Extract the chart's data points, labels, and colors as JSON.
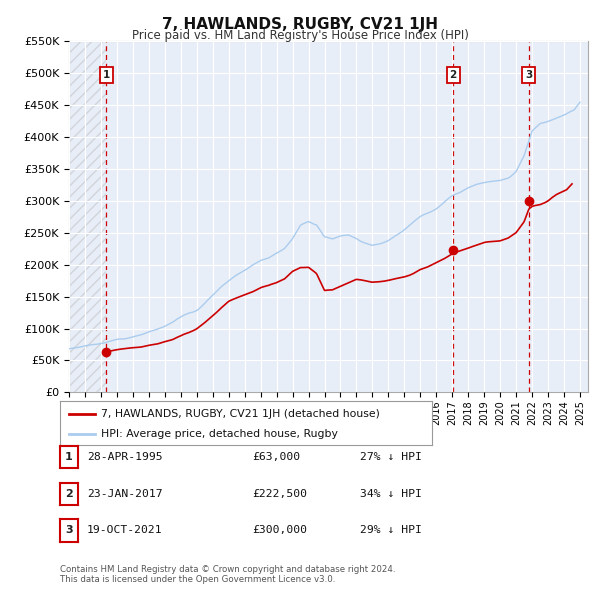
{
  "title": "7, HAWLANDS, RUGBY, CV21 1JH",
  "subtitle": "Price paid vs. HM Land Registry's House Price Index (HPI)",
  "xlim_start": 1993.0,
  "xlim_end": 2025.5,
  "ylim_min": 0,
  "ylim_max": 550000,
  "yticks": [
    0,
    50000,
    100000,
    150000,
    200000,
    250000,
    300000,
    350000,
    400000,
    450000,
    500000,
    550000
  ],
  "ytick_labels": [
    "£0",
    "£50K",
    "£100K",
    "£150K",
    "£200K",
    "£250K",
    "£300K",
    "£350K",
    "£400K",
    "£450K",
    "£500K",
    "£550K"
  ],
  "xticks": [
    1993,
    1994,
    1995,
    1996,
    1997,
    1998,
    1999,
    2000,
    2001,
    2002,
    2003,
    2004,
    2005,
    2006,
    2007,
    2008,
    2009,
    2010,
    2011,
    2012,
    2013,
    2014,
    2015,
    2016,
    2017,
    2018,
    2019,
    2020,
    2021,
    2022,
    2023,
    2024,
    2025
  ],
  "sale_color": "#cc0000",
  "hpi_color": "#aaccee",
  "vline_color": "#cc0000",
  "background_color": "#e8eef8",
  "grid_color": "#ffffff",
  "legend_label_sale": "7, HAWLANDS, RUGBY, CV21 1JH (detached house)",
  "legend_label_hpi": "HPI: Average price, detached house, Rugby",
  "sale_events": [
    {
      "label": "1",
      "date_decimal": 1995.32,
      "price": 63000,
      "date_str": "28-APR-1995",
      "price_str": "£63,000",
      "pct_str": "27% ↓ HPI"
    },
    {
      "label": "2",
      "date_decimal": 2017.06,
      "price": 222500,
      "date_str": "23-JAN-2017",
      "price_str": "£222,500",
      "pct_str": "34% ↓ HPI"
    },
    {
      "label": "3",
      "date_decimal": 2021.8,
      "price": 300000,
      "date_str": "19-OCT-2021",
      "price_str": "£300,000",
      "pct_str": "29% ↓ HPI"
    }
  ],
  "hpi_anchors": [
    [
      1993.0,
      68000
    ],
    [
      1993.5,
      70000
    ],
    [
      1994.0,
      73000
    ],
    [
      1994.5,
      76000
    ],
    [
      1995.0,
      79000
    ],
    [
      1995.5,
      82000
    ],
    [
      1996.0,
      85000
    ],
    [
      1996.5,
      87000
    ],
    [
      1997.0,
      90000
    ],
    [
      1997.5,
      92000
    ],
    [
      1998.0,
      95000
    ],
    [
      1998.5,
      98000
    ],
    [
      1999.0,
      102000
    ],
    [
      1999.5,
      108000
    ],
    [
      2000.0,
      116000
    ],
    [
      2000.5,
      125000
    ],
    [
      2001.0,
      132000
    ],
    [
      2001.5,
      143000
    ],
    [
      2002.0,
      155000
    ],
    [
      2002.5,
      168000
    ],
    [
      2003.0,
      178000
    ],
    [
      2003.5,
      188000
    ],
    [
      2004.0,
      196000
    ],
    [
      2004.5,
      205000
    ],
    [
      2005.0,
      212000
    ],
    [
      2005.5,
      215000
    ],
    [
      2006.0,
      222000
    ],
    [
      2006.5,
      230000
    ],
    [
      2007.0,
      245000
    ],
    [
      2007.5,
      265000
    ],
    [
      2008.0,
      272000
    ],
    [
      2008.5,
      268000
    ],
    [
      2009.0,
      248000
    ],
    [
      2009.5,
      245000
    ],
    [
      2010.0,
      250000
    ],
    [
      2010.5,
      252000
    ],
    [
      2011.0,
      248000
    ],
    [
      2011.5,
      242000
    ],
    [
      2012.0,
      238000
    ],
    [
      2012.5,
      242000
    ],
    [
      2013.0,
      248000
    ],
    [
      2013.5,
      258000
    ],
    [
      2014.0,
      268000
    ],
    [
      2014.5,
      278000
    ],
    [
      2015.0,
      288000
    ],
    [
      2015.5,
      296000
    ],
    [
      2016.0,
      305000
    ],
    [
      2016.5,
      315000
    ],
    [
      2017.0,
      325000
    ],
    [
      2017.5,
      332000
    ],
    [
      2018.0,
      340000
    ],
    [
      2018.5,
      345000
    ],
    [
      2019.0,
      348000
    ],
    [
      2019.5,
      350000
    ],
    [
      2020.0,
      352000
    ],
    [
      2020.5,
      358000
    ],
    [
      2021.0,
      370000
    ],
    [
      2021.5,
      395000
    ],
    [
      2022.0,
      435000
    ],
    [
      2022.5,
      448000
    ],
    [
      2023.0,
      452000
    ],
    [
      2023.5,
      455000
    ],
    [
      2024.0,
      458000
    ],
    [
      2024.5,
      462000
    ],
    [
      2025.0,
      465000
    ]
  ],
  "sale_anchors": [
    [
      1995.32,
      63000
    ],
    [
      1995.5,
      63500
    ],
    [
      1996.0,
      64500
    ],
    [
      1996.5,
      65500
    ],
    [
      1997.0,
      67000
    ],
    [
      1997.5,
      68000
    ],
    [
      1998.0,
      70000
    ],
    [
      1998.5,
      72000
    ],
    [
      1999.0,
      76000
    ],
    [
      1999.5,
      80000
    ],
    [
      2000.0,
      86000
    ],
    [
      2000.5,
      93000
    ],
    [
      2001.0,
      100000
    ],
    [
      2001.5,
      110000
    ],
    [
      2002.0,
      122000
    ],
    [
      2002.5,
      135000
    ],
    [
      2003.0,
      146000
    ],
    [
      2003.5,
      152000
    ],
    [
      2004.0,
      157000
    ],
    [
      2004.5,
      162000
    ],
    [
      2005.0,
      168000
    ],
    [
      2005.5,
      172000
    ],
    [
      2006.0,
      178000
    ],
    [
      2006.5,
      185000
    ],
    [
      2007.0,
      198000
    ],
    [
      2007.5,
      205000
    ],
    [
      2008.0,
      205000
    ],
    [
      2008.5,
      195000
    ],
    [
      2009.0,
      168000
    ],
    [
      2009.5,
      168000
    ],
    [
      2010.0,
      172000
    ],
    [
      2010.5,
      176000
    ],
    [
      2011.0,
      180000
    ],
    [
      2011.5,
      178000
    ],
    [
      2012.0,
      175000
    ],
    [
      2012.5,
      176000
    ],
    [
      2013.0,
      178000
    ],
    [
      2013.5,
      182000
    ],
    [
      2014.0,
      186000
    ],
    [
      2014.5,
      190000
    ],
    [
      2015.0,
      196000
    ],
    [
      2015.5,
      200000
    ],
    [
      2016.0,
      205000
    ],
    [
      2016.5,
      212000
    ],
    [
      2017.06,
      222500
    ],
    [
      2017.5,
      228000
    ],
    [
      2018.0,
      232000
    ],
    [
      2018.5,
      236000
    ],
    [
      2019.0,
      240000
    ],
    [
      2019.5,
      243000
    ],
    [
      2020.0,
      246000
    ],
    [
      2020.5,
      252000
    ],
    [
      2021.0,
      262000
    ],
    [
      2021.5,
      280000
    ],
    [
      2021.8,
      300000
    ],
    [
      2022.0,
      304000
    ],
    [
      2022.5,
      308000
    ],
    [
      2023.0,
      314000
    ],
    [
      2023.5,
      322000
    ],
    [
      2024.0,
      328000
    ],
    [
      2024.5,
      333000
    ]
  ],
  "footnote": "Contains HM Land Registry data © Crown copyright and database right 2024.\nThis data is licensed under the Open Government Licence v3.0."
}
